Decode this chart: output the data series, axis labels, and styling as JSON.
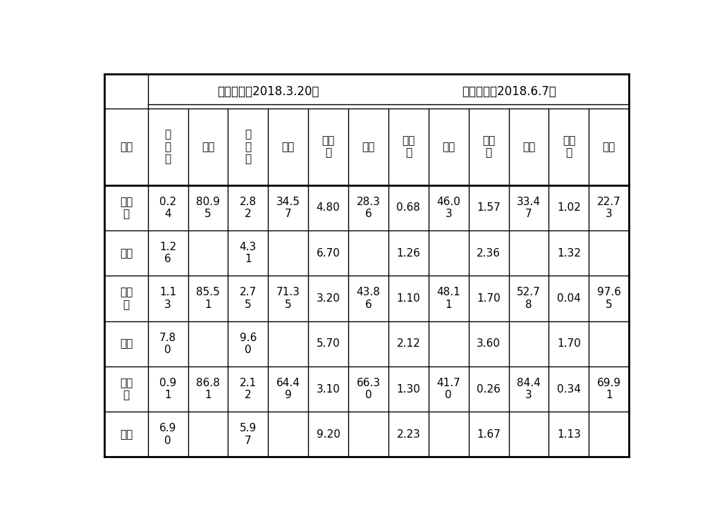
{
  "header_group1": "病虫基数（2018.3.20）",
  "header_group2": "病虫基数（2018.6.7）",
  "col_header_texts": [
    "红\n蚜\n蛛",
    "防效",
    "白\n粉\n虱",
    "防效",
    "矢尖\n蚧",
    "防效",
    "红蚜\n蛛",
    "防效",
    "白粉\n虱",
    "防效",
    "矢尖\n蚧",
    "防效"
  ],
  "row_labels": [
    "试验\n一",
    "对照",
    "试验\n二",
    "对照",
    "试验\n三",
    "对照"
  ],
  "row_data": [
    [
      "0.2\n4",
      "80.9\n5",
      "2.8\n2",
      "34.5\n7",
      "4.80",
      "28.3\n6",
      "0.68",
      "46.0\n3",
      "1.57",
      "33.4\n7",
      "1.02",
      "22.7\n3"
    ],
    [
      "1.2\n6",
      "",
      "4.3\n1",
      "",
      "6.70",
      "",
      "1.26",
      "",
      "2.36",
      "",
      "1.32",
      ""
    ],
    [
      "1.1\n3",
      "85.5\n1",
      "2.7\n5",
      "71.3\n5",
      "3.20",
      "43.8\n6",
      "1.10",
      "48.1\n1",
      "1.70",
      "52.7\n8",
      "0.04",
      "97.6\n5"
    ],
    [
      "7.8\n0",
      "",
      "9.6\n0",
      "",
      "5.70",
      "",
      "2.12",
      "",
      "3.60",
      "",
      "1.70",
      ""
    ],
    [
      "0.9\n1",
      "86.8\n1",
      "2.1\n2",
      "64.4\n9",
      "3.10",
      "66.3\n0",
      "1.30",
      "41.7\n0",
      "0.26",
      "84.4\n3",
      "0.34",
      "69.9\n1"
    ],
    [
      "6.9\n0",
      "",
      "5.9\n7",
      "",
      "9.20",
      "",
      "2.23",
      "",
      "1.67",
      "",
      "1.13",
      ""
    ]
  ],
  "background_color": "#ffffff",
  "line_color": "#000000",
  "font_color": "#000000"
}
